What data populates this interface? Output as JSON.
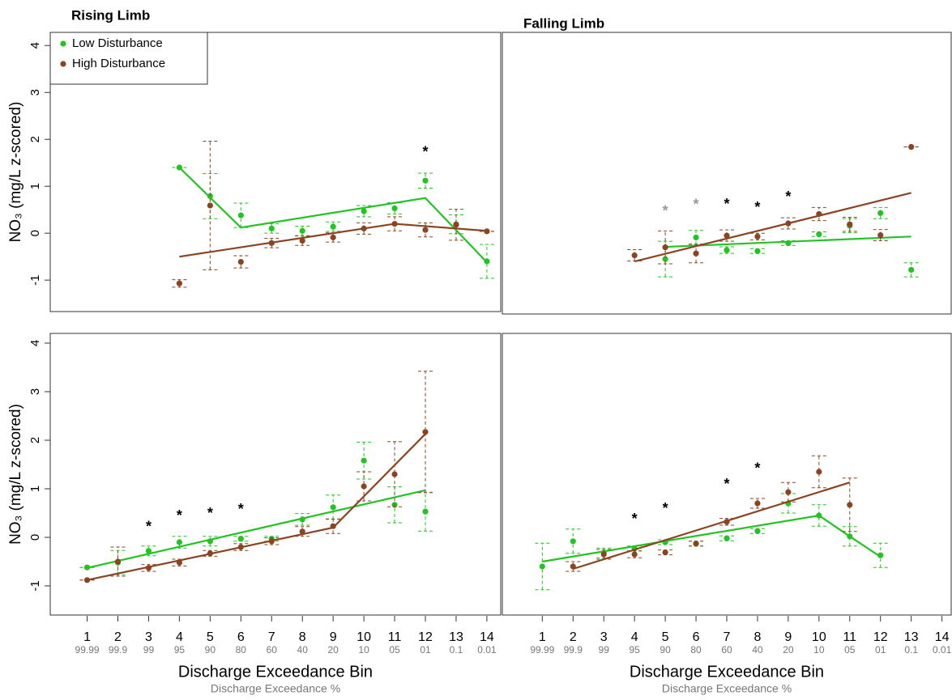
{
  "chart_data": [
    {
      "type": "scatter",
      "title": "Rising Limb",
      "ylabel": "NO₃ (mg/L z-scored)",
      "legend": "upper left",
      "xlim": [
        -0.2,
        14.45
      ],
      "ylim": [
        -1.67,
        4.28
      ],
      "yticks": [
        -1,
        0,
        1,
        2,
        3,
        4
      ],
      "series": [
        {
          "name": "Low Disturbance",
          "color": "#22c322",
          "x": [
            4,
            5,
            6,
            7,
            8,
            9,
            10,
            11,
            12,
            13,
            14
          ],
          "values": [
            1.4,
            0.79,
            0.38,
            0.1,
            0.05,
            0.14,
            0.47,
            0.53,
            1.12,
            0.19,
            -0.6
          ],
          "errors": [
            0,
            0.48,
            0.26,
            0.1,
            0.1,
            0.1,
            0.12,
            0.12,
            0.16,
            0.2,
            0.36
          ],
          "fit": {
            "x": [
              4,
              6,
              12,
              14
            ],
            "values": [
              1.4,
              0.12,
              0.75,
              -0.62
            ]
          }
        },
        {
          "name": "High Disturbance",
          "color": "#8b4422",
          "x": [
            4,
            5,
            6,
            7,
            8,
            9,
            10,
            11,
            12,
            13,
            14
          ],
          "values": [
            -1.07,
            0.59,
            -0.61,
            -0.21,
            -0.16,
            -0.09,
            0.1,
            0.2,
            0.07,
            0.18,
            0.04
          ],
          "errors": [
            0.08,
            1.37,
            0.13,
            0.1,
            0.1,
            0.1,
            0.12,
            0.15,
            0.15,
            0.33,
            0
          ],
          "fit": {
            "x": [
              4,
              11,
              14
            ],
            "values": [
              -0.5,
              0.2,
              0.05
            ]
          }
        }
      ],
      "annotations": [
        {
          "text": "*",
          "x": 12,
          "y": 1.78,
          "color": "#000000"
        }
      ]
    },
    {
      "type": "scatter",
      "title": "Falling Limb",
      "xlim": [
        -0.3,
        14.3
      ],
      "ylim": [
        -1.72,
        4.28
      ],
      "series": [
        {
          "color": "#22c322",
          "x": [
            5,
            6,
            7,
            8,
            9,
            10,
            11,
            12,
            13
          ],
          "values": [
            -0.55,
            -0.09,
            -0.36,
            -0.38,
            -0.21,
            -0.02,
            0.16,
            0.43,
            -0.78
          ],
          "errors": [
            0.38,
            0.15,
            0.07,
            0.05,
            0.05,
            0.05,
            0.15,
            0.12,
            0.15
          ],
          "fit": {
            "x": [
              5,
              13
            ],
            "values": [
              -0.29,
              -0.07
            ]
          }
        },
        {
          "color": "#8b4422",
          "x": [
            4,
            5,
            6,
            7,
            8,
            9,
            10,
            11,
            12,
            13
          ],
          "values": [
            -0.47,
            -0.3,
            -0.43,
            -0.05,
            -0.07,
            0.21,
            0.41,
            0.19,
            -0.04,
            1.84
          ],
          "errors": [
            0.12,
            0.35,
            0.2,
            0.12,
            0.07,
            0.12,
            0.14,
            0.15,
            0.12,
            0
          ],
          "fit": {
            "x": [
              4,
              13
            ],
            "values": [
              -0.6,
              0.86
            ]
          }
        }
      ],
      "annotations": [
        {
          "text": "*",
          "x": 5,
          "y": 0.53,
          "color": "#999999"
        },
        {
          "text": "*",
          "x": 6,
          "y": 0.66,
          "color": "#999999"
        },
        {
          "text": "*",
          "x": 7,
          "y": 0.67,
          "color": "#000000"
        },
        {
          "text": "*",
          "x": 8,
          "y": 0.6,
          "color": "#000000"
        },
        {
          "text": "*",
          "x": 9,
          "y": 0.83,
          "color": "#000000"
        }
      ]
    },
    {
      "type": "scatter",
      "ylabel": "NO₃ (mg/L z-scored)",
      "xlabel": "Discharge Exceedance Bin",
      "xsublabel": "Discharge Exceedance %",
      "xlim": [
        -0.2,
        14.45
      ],
      "ylim": [
        -1.6,
        4.2
      ],
      "yticks": [
        -1,
        0,
        1,
        2,
        3,
        4
      ],
      "xticks": [
        1,
        2,
        3,
        4,
        5,
        6,
        7,
        8,
        9,
        10,
        11,
        12,
        13,
        14
      ],
      "xtick_sublabels": [
        "99.99",
        "99.9",
        "99",
        "95",
        "90",
        "80",
        "60",
        "40",
        "20",
        "10",
        "05",
        "01",
        "0.1",
        "0.01"
      ],
      "series": [
        {
          "color": "#22c322",
          "x": [
            1,
            2,
            3,
            4,
            5,
            6,
            7,
            8,
            9,
            10,
            11,
            12
          ],
          "values": [
            -0.62,
            -0.52,
            -0.28,
            -0.1,
            -0.08,
            -0.03,
            -0.03,
            0.37,
            0.62,
            1.58,
            0.67,
            0.53
          ],
          "errors": [
            0,
            0.25,
            0.1,
            0.12,
            0.1,
            0.05,
            0.05,
            0.12,
            0.25,
            0.38,
            0.37,
            0.4
          ],
          "fit": {
            "x": [
              1,
              12
            ],
            "values": [
              -0.63,
              0.97
            ]
          }
        },
        {
          "color": "#8b4422",
          "x": [
            1,
            2,
            3,
            4,
            5,
            6,
            7,
            8,
            9,
            10,
            11,
            12
          ],
          "values": [
            -0.88,
            -0.5,
            -0.63,
            -0.52,
            -0.33,
            -0.2,
            -0.08,
            0.12,
            0.23,
            1.05,
            1.3,
            2.17
          ],
          "errors": [
            0,
            0.3,
            0.07,
            0.07,
            0.06,
            0.07,
            0.07,
            0.1,
            0.15,
            0.3,
            0.67,
            1.25
          ],
          "fit": {
            "x": [
              1,
              9,
              12
            ],
            "values": [
              -0.88,
              0.2,
              2.13
            ]
          }
        }
      ],
      "annotations": [
        {
          "text": "*",
          "x": 3,
          "y": 0.27,
          "color": "#000000"
        },
        {
          "text": "*",
          "x": 4,
          "y": 0.5,
          "color": "#000000"
        },
        {
          "text": "*",
          "x": 5,
          "y": 0.55,
          "color": "#000000"
        },
        {
          "text": "*",
          "x": 6,
          "y": 0.63,
          "color": "#000000"
        }
      ]
    },
    {
      "type": "scatter",
      "xlabel": "Discharge Exceedance Bin",
      "xsublabel": "Discharge Exceedance %",
      "xlim": [
        -0.3,
        14.3
      ],
      "ylim": [
        -1.6,
        4.2
      ],
      "xticks": [
        1,
        2,
        3,
        4,
        5,
        6,
        7,
        8,
        9,
        10,
        11,
        12,
        13,
        14
      ],
      "xtick_sublabels": [
        "99.99",
        "99.9",
        "99",
        "95",
        "90",
        "80",
        "60",
        "40",
        "20",
        "10",
        "05",
        "01",
        "0.1",
        "0.01"
      ],
      "series": [
        {
          "color": "#22c322",
          "x": [
            1,
            2,
            3,
            4,
            5,
            6,
            7,
            8,
            9,
            10,
            11,
            12
          ],
          "values": [
            -0.6,
            -0.08,
            -0.32,
            -0.23,
            -0.1,
            -0.13,
            -0.02,
            0.13,
            0.7,
            0.45,
            0.02,
            -0.37
          ],
          "errors": [
            0.48,
            0.25,
            0.1,
            0.05,
            0.05,
            0.05,
            0.05,
            0.05,
            0.2,
            0.22,
            0.2,
            0.25
          ],
          "fit": {
            "x": [
              1,
              10,
              11,
              12
            ],
            "values": [
              -0.5,
              0.45,
              0.02,
              -0.4
            ]
          }
        },
        {
          "color": "#8b4422",
          "x": [
            2,
            3,
            4,
            5,
            6,
            7,
            8,
            9,
            10,
            11
          ],
          "values": [
            -0.6,
            -0.35,
            -0.35,
            -0.31,
            -0.13,
            0.32,
            0.7,
            0.93,
            1.35,
            0.67
          ],
          "errors": [
            0.1,
            0.1,
            0.07,
            0.05,
            0.05,
            0.07,
            0.1,
            0.2,
            0.33,
            0.55
          ],
          "fit": {
            "x": [
              2,
              11
            ],
            "values": [
              -0.65,
              1.13
            ]
          }
        }
      ],
      "annotations": [
        {
          "text": "*",
          "x": 4,
          "y": 0.43,
          "color": "#000000"
        },
        {
          "text": "*",
          "x": 5,
          "y": 0.65,
          "color": "#000000"
        },
        {
          "text": "*",
          "x": 7,
          "y": 1.15,
          "color": "#000000"
        },
        {
          "text": "*",
          "x": 8,
          "y": 1.47,
          "color": "#000000"
        }
      ]
    }
  ]
}
